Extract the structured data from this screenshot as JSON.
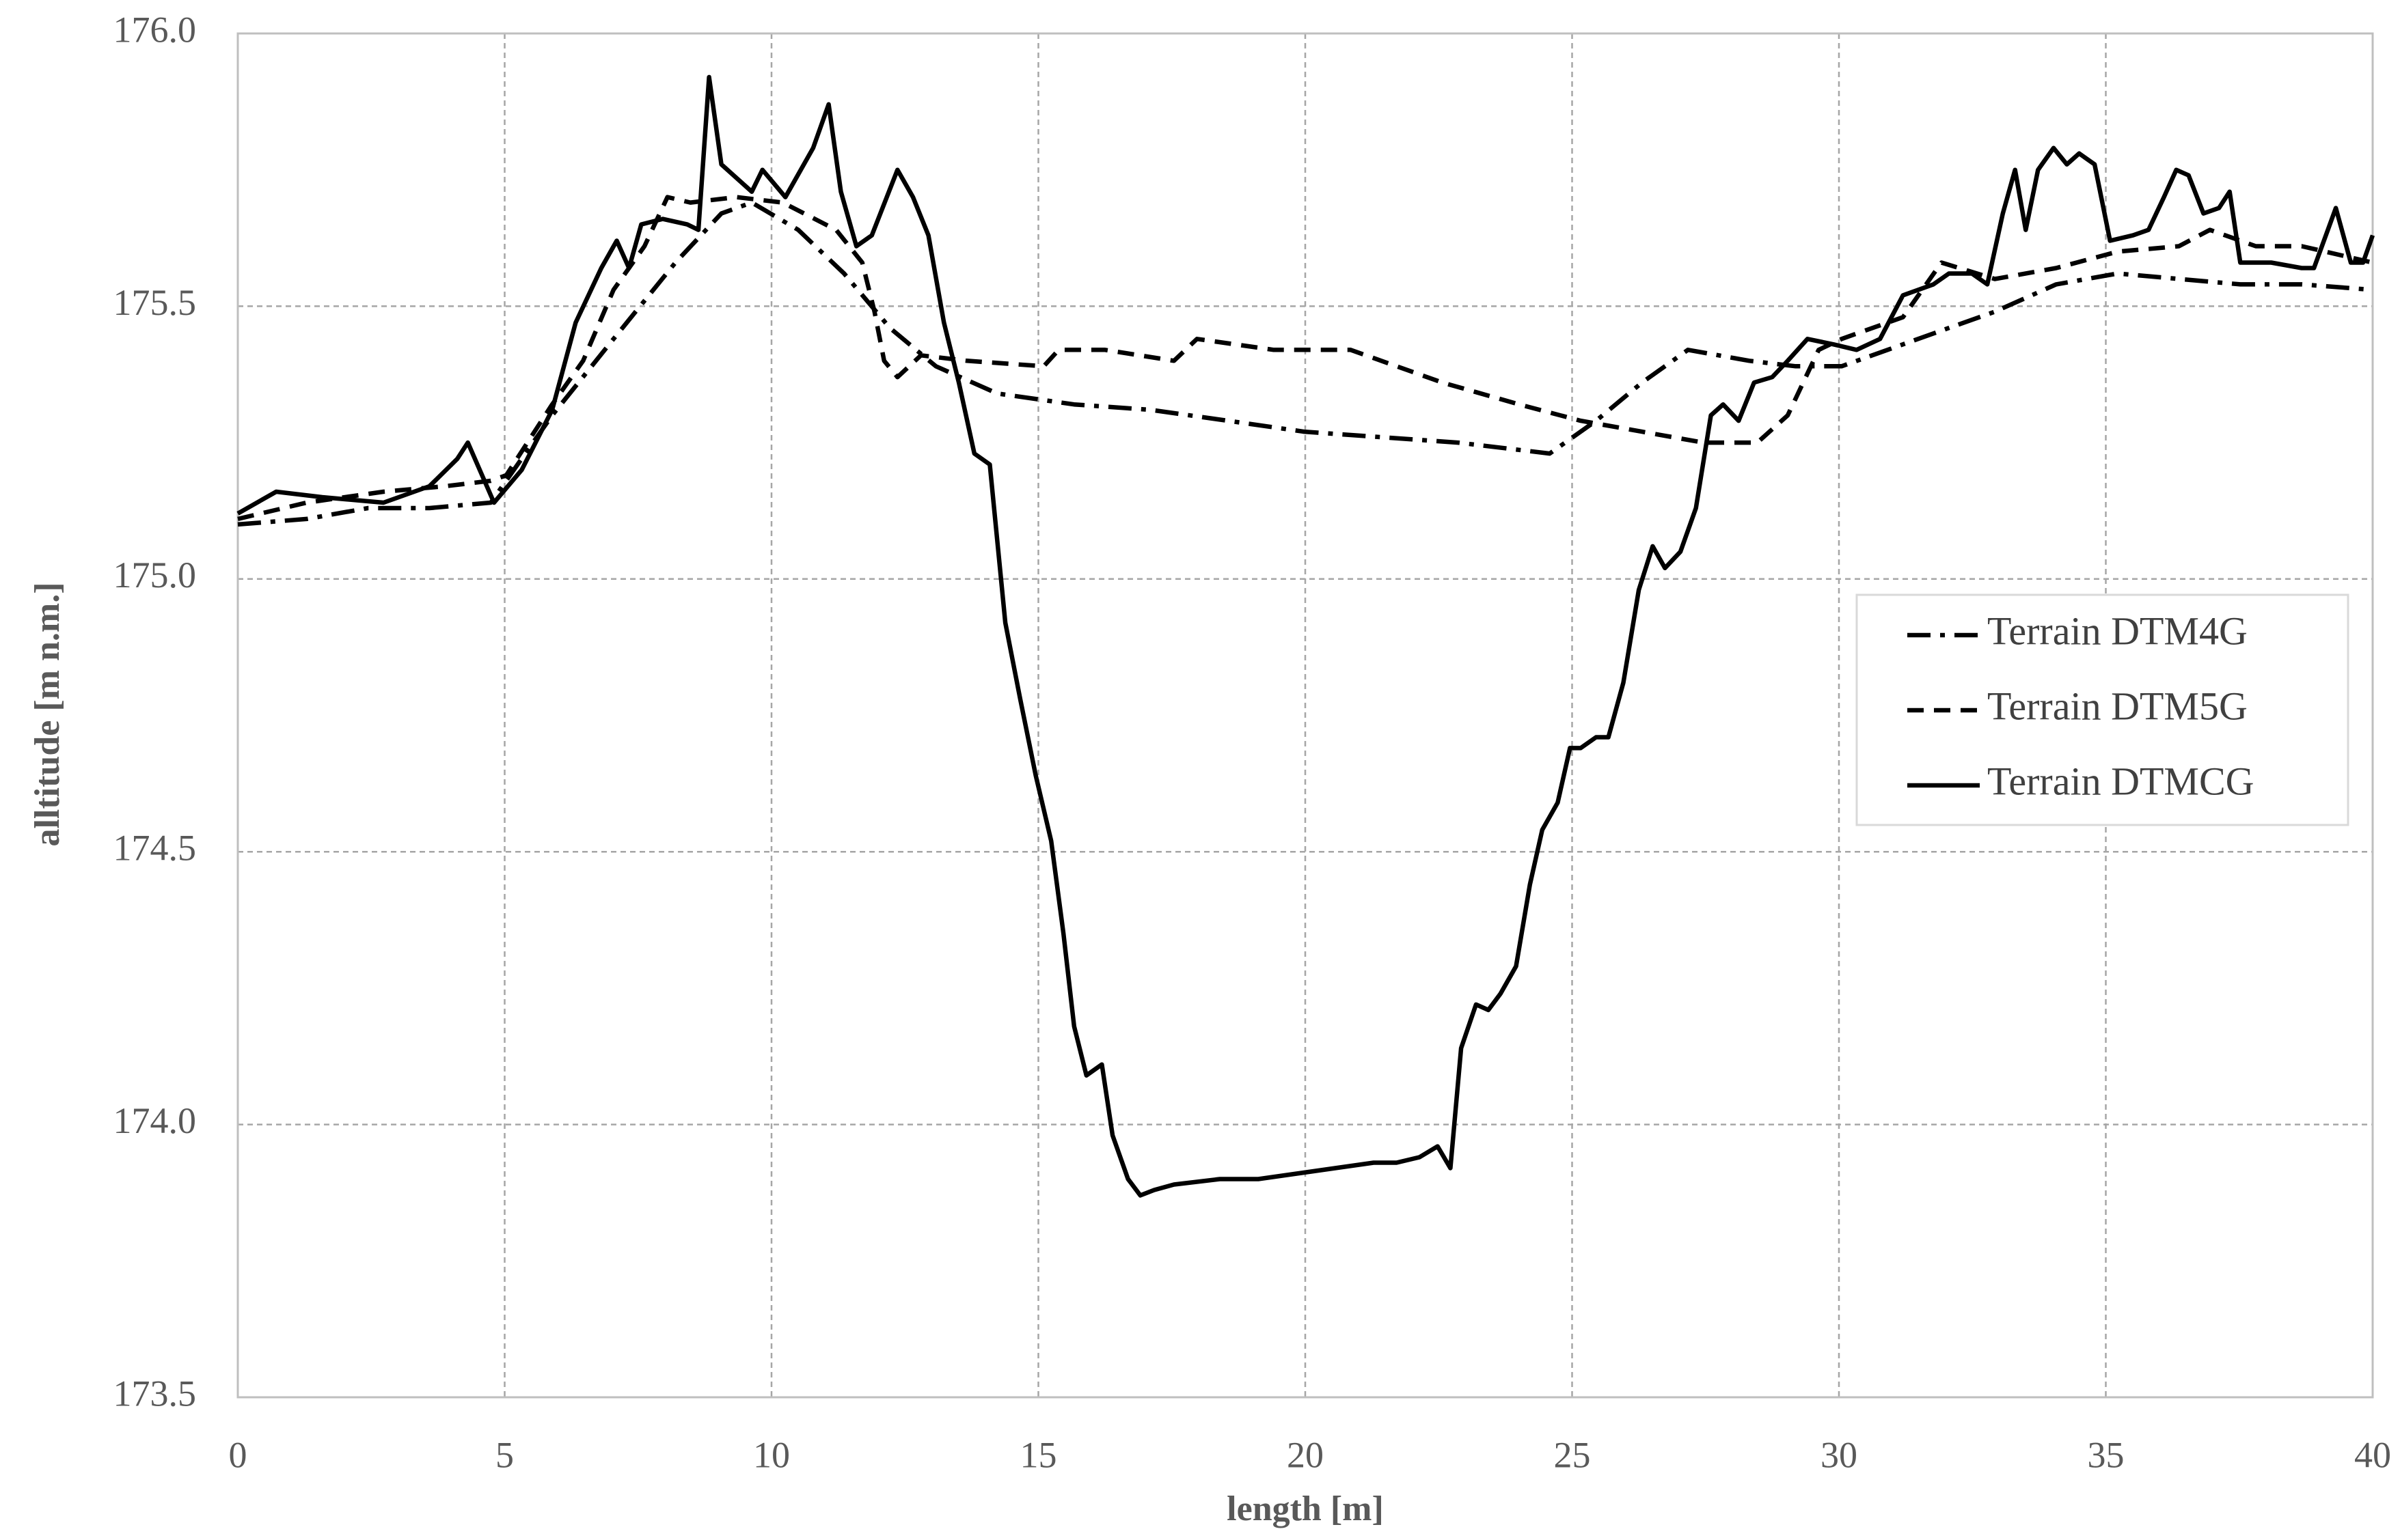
{
  "chart_data": {
    "type": "line",
    "xlabel": "length [m]",
    "ylabel": "alltitude [m n.m.]",
    "xlim": [
      0,
      40
    ],
    "xticks": [
      0,
      5,
      10,
      15,
      20,
      25,
      30,
      35,
      40
    ],
    "ylim": [
      173.5,
      176.0
    ],
    "yticks": [
      {
        "value": 173.5,
        "label": "173.5"
      },
      {
        "value": 174.0,
        "label": "174.0"
      },
      {
        "value": 174.5,
        "label": "174.5"
      },
      {
        "value": 175.0,
        "label": "175.0"
      },
      {
        "value": 175.5,
        "label": "175.5"
      },
      {
        "value": 176.0,
        "label": "176.0"
      }
    ],
    "grid": true,
    "legend": "right",
    "series": [
      {
        "name": "Terrain DTM4G",
        "color": "#000000",
        "style": "dashdot",
        "x": [
          0,
          1.29,
          2.44,
          3.59,
          4.74,
          5.89,
          7.04,
          8.2,
          9.06,
          9.63,
          10.5,
          11.36,
          12.22,
          13.08,
          14.23,
          15.67,
          17.11,
          18.55,
          19.98,
          21.42,
          22.86,
          24.58,
          25.45,
          26.31,
          27.17,
          28.32,
          29.19,
          30.05,
          30.91,
          31.77,
          32.92,
          34.07,
          35.22,
          36.37,
          37.52,
          38.67,
          40
        ],
        "values": [
          175.1,
          175.11,
          175.13,
          175.13,
          175.14,
          175.3,
          175.44,
          175.58,
          175.67,
          175.69,
          175.64,
          175.56,
          175.46,
          175.39,
          175.34,
          175.32,
          175.31,
          175.29,
          175.27,
          175.26,
          175.25,
          175.23,
          175.29,
          175.36,
          175.42,
          175.4,
          175.39,
          175.39,
          175.42,
          175.45,
          175.49,
          175.54,
          175.56,
          175.55,
          175.54,
          175.54,
          175.53
        ]
      },
      {
        "name": "Terrain DTM5G",
        "color": "#000000",
        "style": "dashed",
        "x": [
          0,
          1.29,
          2.73,
          3.88,
          4.74,
          5.03,
          5.89,
          6.47,
          7.04,
          7.62,
          8.05,
          8.48,
          9.34,
          10.21,
          11.21,
          11.7,
          11.93,
          12.11,
          12.36,
          12.8,
          13.66,
          15.1,
          15.38,
          16.25,
          17.54,
          17.97,
          19.41,
          20.85,
          22.57,
          24.01,
          25.16,
          26.31,
          27.46,
          28.47,
          29.04,
          29.62,
          30.05,
          31.2,
          31.92,
          32.92,
          34.07,
          35.22,
          36.37,
          36.95,
          37.81,
          38.67,
          40
        ],
        "values": [
          175.11,
          175.14,
          175.16,
          175.17,
          175.18,
          175.19,
          175.32,
          175.4,
          175.53,
          175.61,
          175.7,
          175.69,
          175.7,
          175.69,
          175.64,
          175.58,
          175.49,
          175.4,
          175.37,
          175.41,
          175.4,
          175.39,
          175.42,
          175.42,
          175.4,
          175.44,
          175.42,
          175.42,
          175.36,
          175.32,
          175.29,
          175.27,
          175.25,
          175.25,
          175.3,
          175.42,
          175.44,
          175.48,
          175.58,
          175.55,
          175.57,
          175.6,
          175.61,
          175.64,
          175.61,
          175.61,
          175.58
        ]
      },
      {
        "name": "Terrain DTMCG",
        "color": "#000000",
        "style": "solid",
        "x": [
          0,
          0.72,
          1.58,
          2.73,
          3.59,
          4.11,
          4.31,
          4.8,
          5.32,
          5.89,
          6.33,
          6.81,
          7.1,
          7.33,
          7.56,
          7.96,
          8.42,
          8.63,
          8.83,
          9.06,
          9.63,
          9.83,
          10.26,
          10.78,
          11.07,
          11.3,
          11.59,
          11.88,
          12.36,
          12.65,
          12.94,
          13.23,
          13.51,
          13.8,
          14.09,
          14.38,
          14.66,
          14.95,
          15.24,
          15.47,
          15.67,
          15.9,
          16.19,
          16.39,
          16.68,
          16.91,
          17.17,
          17.54,
          18.4,
          19.12,
          19.84,
          20.56,
          21.28,
          21.71,
          22.14,
          22.48,
          22.72,
          22.92,
          23.2,
          23.43,
          23.66,
          23.95,
          24.21,
          24.44,
          24.73,
          24.96,
          25.16,
          25.45,
          25.68,
          25.96,
          26.25,
          26.51,
          26.74,
          27.03,
          27.32,
          27.6,
          27.83,
          28.12,
          28.41,
          28.75,
          29.04,
          29.41,
          29.9,
          30.33,
          30.77,
          31.2,
          31.77,
          32.06,
          32.49,
          32.78,
          33.07,
          33.3,
          33.5,
          33.73,
          34.02,
          34.27,
          34.5,
          34.79,
          35.08,
          35.51,
          35.8,
          36.09,
          36.32,
          36.55,
          36.83,
          37.12,
          37.32,
          37.52,
          38.1,
          38.67,
          38.9,
          39.31,
          39.59,
          39.82,
          40
        ],
        "values": [
          175.12,
          175.16,
          175.15,
          175.14,
          175.17,
          175.22,
          175.25,
          175.14,
          175.2,
          175.31,
          175.47,
          175.57,
          175.62,
          175.57,
          175.65,
          175.66,
          175.65,
          175.64,
          175.92,
          175.76,
          175.71,
          175.75,
          175.7,
          175.79,
          175.87,
          175.71,
          175.61,
          175.63,
          175.75,
          175.7,
          175.63,
          175.47,
          175.36,
          175.23,
          175.21,
          174.92,
          174.78,
          174.64,
          174.52,
          174.35,
          174.18,
          174.09,
          174.11,
          173.98,
          173.9,
          173.87,
          173.88,
          173.89,
          173.9,
          173.9,
          173.91,
          173.92,
          173.93,
          173.93,
          173.94,
          173.96,
          173.92,
          174.14,
          174.22,
          174.21,
          174.24,
          174.29,
          174.44,
          174.54,
          174.59,
          174.69,
          174.69,
          174.71,
          174.71,
          174.81,
          174.98,
          175.06,
          175.02,
          175.05,
          175.13,
          175.3,
          175.32,
          175.29,
          175.36,
          175.37,
          175.4,
          175.44,
          175.43,
          175.42,
          175.44,
          175.52,
          175.54,
          175.56,
          175.56,
          175.54,
          175.67,
          175.75,
          175.64,
          175.75,
          175.79,
          175.76,
          175.78,
          175.76,
          175.62,
          175.63,
          175.64,
          175.7,
          175.75,
          175.74,
          175.67,
          175.68,
          175.71,
          175.58,
          175.58,
          175.57,
          175.57,
          175.68,
          175.58,
          175.58,
          175.63
        ]
      }
    ]
  }
}
